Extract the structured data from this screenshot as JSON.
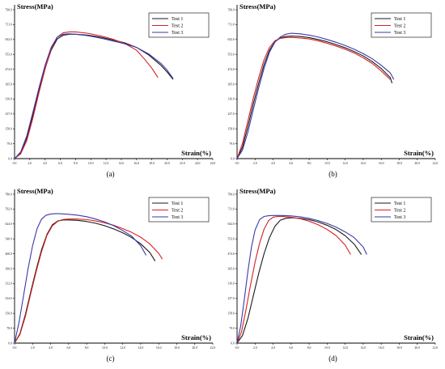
{
  "chart_data": [
    {
      "type": "line",
      "panel_label": "(a)",
      "ylabel": "Stress(MPa)",
      "xlabel": "Strain(%)",
      "xlim": [
        0,
        26
      ],
      "ylim": [
        0,
        790
      ],
      "xticks": [
        "0.0",
        "2.0",
        "4.0",
        "6.0",
        "8.0",
        "10.0",
        "12.0",
        "14.0",
        "16.0",
        "18.0",
        "20.0",
        "22.0",
        "24.0",
        "26.0"
      ],
      "yticks": [
        "0.0",
        "79.0",
        "158.0",
        "237.0",
        "316.0",
        "395.0",
        "474.0",
        "553.0",
        "632.0",
        "711.0",
        "790.0"
      ],
      "legend_position": "top-right",
      "series": [
        {
          "name": "Test 1",
          "color": "#1a1a1a",
          "x": [
            0,
            0.8,
            1.6,
            2.4,
            3.2,
            4.0,
            4.8,
            5.6,
            6.4,
            7.2,
            8.0,
            9.6,
            11.2,
            12.8,
            14.4,
            16.0,
            17.6,
            19.2,
            20.0,
            20.8
          ],
          "y": [
            0,
            30,
            110,
            230,
            360,
            480,
            575,
            635,
            655,
            660,
            660,
            655,
            645,
            630,
            615,
            590,
            550,
            495,
            460,
            420
          ]
        },
        {
          "name": "Test 2",
          "color": "#d62020",
          "x": [
            0,
            0.8,
            1.6,
            2.4,
            3.2,
            4.0,
            4.8,
            5.6,
            6.4,
            7.2,
            8.0,
            9.6,
            11.2,
            12.8,
            14.4,
            16.0,
            17.0,
            18.0,
            18.8
          ],
          "y": [
            0,
            25,
            95,
            215,
            350,
            475,
            580,
            645,
            668,
            672,
            672,
            665,
            652,
            635,
            612,
            575,
            530,
            480,
            430
          ]
        },
        {
          "name": "Test 3",
          "color": "#3a3aa8",
          "x": [
            0,
            0.8,
            1.6,
            2.4,
            3.2,
            4.0,
            4.8,
            5.6,
            6.4,
            7.2,
            8.0,
            9.6,
            11.2,
            12.8,
            14.4,
            16.0,
            17.6,
            19.2,
            20.0,
            20.8
          ],
          "y": [
            0,
            35,
            120,
            245,
            375,
            495,
            590,
            645,
            660,
            662,
            660,
            652,
            640,
            625,
            610,
            590,
            555,
            505,
            470,
            425
          ]
        }
      ]
    },
    {
      "type": "line",
      "panel_label": "(b)",
      "ylabel": "Stress(MPa)",
      "xlabel": "Strain(%)",
      "xlim": [
        0,
        22
      ],
      "ylim": [
        0,
        790
      ],
      "xticks": [
        "0.0",
        "2.0",
        "4.0",
        "6.0",
        "8.0",
        "10.0",
        "12.0",
        "14.0",
        "16.0",
        "18.0",
        "20.0",
        "22.0"
      ],
      "yticks": [
        "0.0",
        "79.0",
        "158.0",
        "237.0",
        "316.0",
        "395.0",
        "474.0",
        "553.0",
        "632.0",
        "711.0",
        "790.0"
      ],
      "legend_position": "top-right",
      "series": [
        {
          "name": "Test 1",
          "color": "#1a1a1a",
          "x": [
            0,
            0.6,
            1.2,
            1.8,
            2.4,
            3.0,
            3.6,
            4.2,
            4.8,
            5.4,
            6.0,
            7.0,
            8.0,
            9.0,
            10.0,
            11.0,
            12.0,
            13.0,
            14.0,
            15.0,
            16.0,
            17.0,
            17.2
          ],
          "y": [
            0,
            60,
            170,
            290,
            400,
            500,
            575,
            620,
            640,
            648,
            650,
            648,
            642,
            632,
            620,
            605,
            588,
            568,
            545,
            515,
            478,
            430,
            400
          ]
        },
        {
          "name": "Test 2",
          "color": "#d62020",
          "x": [
            0,
            0.6,
            1.2,
            1.8,
            2.4,
            3.0,
            3.6,
            4.2,
            4.8,
            5.4,
            6.0,
            7.0,
            8.0,
            9.0,
            10.0,
            11.0,
            12.0,
            13.0,
            14.0,
            15.0,
            16.0,
            17.0
          ],
          "y": [
            0,
            80,
            200,
            320,
            430,
            525,
            590,
            625,
            638,
            642,
            643,
            640,
            635,
            625,
            612,
            597,
            580,
            560,
            535,
            505,
            465,
            420
          ]
        },
        {
          "name": "Test 3",
          "color": "#3a3aa8",
          "x": [
            0,
            0.6,
            1.2,
            1.8,
            2.4,
            3.0,
            3.6,
            4.2,
            4.8,
            5.4,
            6.0,
            7.0,
            8.0,
            9.0,
            10.0,
            11.0,
            12.0,
            13.0,
            14.0,
            15.0,
            16.0,
            17.0,
            17.4
          ],
          "y": [
            0,
            45,
            140,
            260,
            375,
            480,
            565,
            618,
            645,
            660,
            665,
            662,
            655,
            645,
            632,
            617,
            600,
            580,
            557,
            530,
            495,
            455,
            420
          ]
        }
      ]
    },
    {
      "type": "line",
      "panel_label": "(c)",
      "ylabel": "Stress(MPa)",
      "xlabel": "Strain(%)",
      "xlim": [
        0,
        22
      ],
      "ylim": [
        0,
        780
      ],
      "xticks": [
        "0.0",
        "2.0",
        "4.0",
        "6.0",
        "8.0",
        "10.0",
        "12.0",
        "14.0",
        "16.0",
        "18.0",
        "20.0",
        "22.0"
      ],
      "yticks": [
        "0.0",
        "78.0",
        "156.0",
        "234.0",
        "312.0",
        "390.0",
        "468.0",
        "546.0",
        "624.0",
        "702.0",
        "780.0"
      ],
      "legend_position": "top-right",
      "series": [
        {
          "name": "Test 1",
          "color": "#1a1a1a",
          "x": [
            0,
            0.6,
            1.2,
            1.8,
            2.4,
            3.0,
            3.6,
            4.2,
            4.8,
            5.4,
            6.0,
            7.0,
            8.0,
            9.0,
            10.0,
            11.0,
            12.0,
            13.0,
            14.0,
            15.0,
            15.6
          ],
          "y": [
            0,
            50,
            150,
            270,
            385,
            490,
            570,
            620,
            640,
            645,
            645,
            643,
            637,
            628,
            615,
            598,
            578,
            553,
            520,
            475,
            430
          ]
        },
        {
          "name": "Test 2",
          "color": "#d62020",
          "x": [
            0,
            0.6,
            1.2,
            1.8,
            2.4,
            3.0,
            3.6,
            4.2,
            4.8,
            5.4,
            6.0,
            7.0,
            8.0,
            9.0,
            10.0,
            11.0,
            12.0,
            13.0,
            14.0,
            15.0,
            16.0,
            16.4
          ],
          "y": [
            0,
            45,
            140,
            260,
            375,
            480,
            565,
            615,
            638,
            648,
            650,
            650,
            647,
            640,
            630,
            617,
            600,
            580,
            555,
            520,
            470,
            440
          ]
        },
        {
          "name": "Test 3",
          "color": "#3a3aa8",
          "x": [
            0,
            0.5,
            1.0,
            1.5,
            2.0,
            2.5,
            3.0,
            3.5,
            4.0,
            4.5,
            5.0,
            6.0,
            7.0,
            8.0,
            9.0,
            10.0,
            11.0,
            12.0,
            13.0,
            14.0,
            14.6
          ],
          "y": [
            0,
            110,
            250,
            390,
            510,
            600,
            650,
            670,
            676,
            678,
            678,
            675,
            670,
            662,
            650,
            635,
            615,
            590,
            560,
            510,
            460
          ]
        }
      ]
    },
    {
      "type": "line",
      "panel_label": "(d)",
      "ylabel": "Stress(MPa)",
      "xlabel": "Strain(%)",
      "xlim": [
        0,
        22
      ],
      "ylim": [
        0,
        790
      ],
      "xticks": [
        "0.0",
        "2.0",
        "4.0",
        "6.0",
        "8.0",
        "10.0",
        "12.0",
        "14.0",
        "16.0",
        "18.0",
        "20.0",
        "22.0"
      ],
      "yticks": [
        "0.0",
        "79.0",
        "158.0",
        "237.0",
        "316.0",
        "395.0",
        "474.0",
        "553.0",
        "632.0",
        "711.0",
        "790.0"
      ],
      "legend_position": "top-right",
      "series": [
        {
          "name": "Test 1",
          "color": "#1a1a1a",
          "x": [
            0,
            0.6,
            1.2,
            1.8,
            2.4,
            3.0,
            3.6,
            4.2,
            4.8,
            5.4,
            6.0,
            7.0,
            8.0,
            9.0,
            10.0,
            11.0,
            12.0,
            13.0,
            13.8
          ],
          "y": [
            0,
            40,
            130,
            250,
            370,
            475,
            560,
            620,
            652,
            662,
            665,
            662,
            655,
            643,
            625,
            602,
            570,
            525,
            470
          ]
        },
        {
          "name": "Test 2",
          "color": "#d62020",
          "x": [
            0,
            0.5,
            1.0,
            1.5,
            2.0,
            2.5,
            3.0,
            3.5,
            4.0,
            4.5,
            5.0,
            6.0,
            7.0,
            8.0,
            9.0,
            10.0,
            11.0,
            12.0,
            12.6
          ],
          "y": [
            0,
            60,
            180,
            310,
            430,
            530,
            605,
            650,
            668,
            672,
            672,
            668,
            660,
            647,
            628,
            603,
            570,
            520,
            470
          ]
        },
        {
          "name": "Test 3",
          "color": "#3a3aa8",
          "x": [
            0,
            0.4,
            0.8,
            1.2,
            1.6,
            2.0,
            2.5,
            3.0,
            3.5,
            4.0,
            5.0,
            6.0,
            7.0,
            8.0,
            9.0,
            10.0,
            11.0,
            12.0,
            13.0,
            14.0,
            14.4
          ],
          "y": [
            0,
            90,
            230,
            380,
            510,
            600,
            655,
            672,
            676,
            677,
            677,
            675,
            670,
            662,
            650,
            635,
            615,
            590,
            560,
            510,
            470
          ]
        }
      ]
    }
  ]
}
